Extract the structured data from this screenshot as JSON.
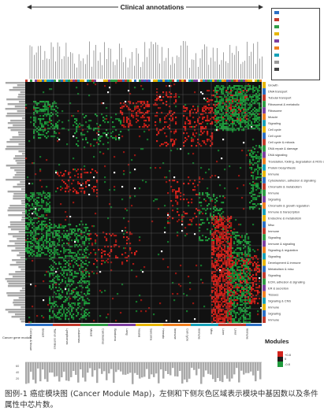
{
  "figure": {
    "top_title": "Clinical annotations",
    "modules_label": "Modules",
    "caption": "图例-1 癌症模块图 (Cancer Module Map)，左侧和下侧灰色区域表示模块中基因数以及条件属性中芯片数。",
    "left_bottom_label": "Cancer gene module"
  },
  "chart_data": {
    "type": "heatmap",
    "title": "Clinical annotations",
    "xlabel": "",
    "ylabel": "",
    "color_scale": {
      "low": "#1f9a3c",
      "mid": "#1a1a1a",
      "high": "#d2231c",
      "labels": [
        "-0.8",
        "0",
        "+0.8"
      ]
    },
    "right_module_labels": [
      "Growth",
      "DNA transport",
      "Tubular transport",
      "Ribosomal & metabolic",
      "Ribosome",
      "Muscle",
      "Signaling",
      "Cell cycle",
      "Cell cycle",
      "Cell cycle & mitosis",
      "DNA repair & damage",
      "DNA signaling",
      "Translation, folding, degradation & ROS detoxification",
      "Protein biosynthesis",
      "Immune",
      "Cytoskeleton, adhesion & signaling",
      "Chromatin & metabolism",
      "Immune",
      "Signaling",
      "Chromatin & growth regulation",
      "Immune & transcription",
      "Endocrine & metabolism",
      "Misc",
      "Immune",
      "Signaling",
      "Immune & signaling",
      "Signaling & regulation",
      "Signaling",
      "Development & immune",
      "Metabolism & misc",
      "Signaling",
      "ECM, adhesion & signaling",
      "ER & secretion",
      "Tissues",
      "Signaling & CNS",
      "Immune",
      "Signaling",
      "Immune"
    ],
    "bottom_group_labels": [
      "Cell line & tissue",
      "Breast",
      "Tumor cell lines",
      "Lymphomas",
      "Leukemias",
      "Mixed",
      "Carcinomas",
      "Blastoma",
      "Lung",
      "Neural",
      "Sarcoma",
      "Hemato",
      "Immune",
      "Cell cycle",
      "Immune",
      "Misc",
      "Liver",
      "Liver",
      "Immune"
    ]
  }
}
